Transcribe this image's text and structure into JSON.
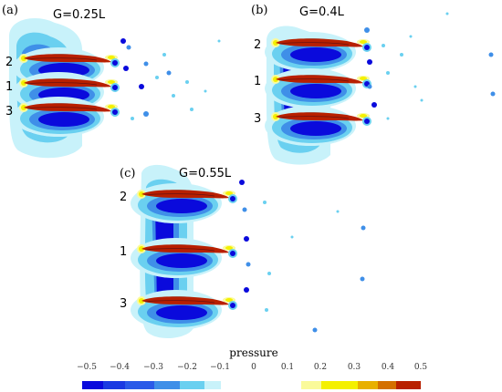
{
  "panels": [
    {
      "letter": "(a)",
      "gap": "G=0.25L",
      "labels": [
        "2",
        "1",
        "3"
      ]
    },
    {
      "letter": "(b)",
      "gap": "G=0.4L",
      "labels": [
        "2",
        "1",
        "3"
      ]
    },
    {
      "letter": "(c)",
      "gap": "G=0.55L",
      "labels": [
        "2",
        "1",
        "3"
      ]
    }
  ],
  "colorbar": {
    "title": "pressure",
    "ticks": [
      "−0.5",
      "−0.4",
      "−0.3",
      "−0.2",
      "−0.1",
      "0",
      "0.1",
      "0.2",
      "0.3",
      "0.4",
      "0.5"
    ],
    "colors": {
      "c_neg5": "#0a0adc",
      "c_neg4": "#2a5ae8",
      "c_neg3": "#3f8fe8",
      "c_neg2": "#6ad0f0",
      "c_neg1": "#c8f2fa",
      "c_zero": "#ffffff",
      "c_pos1": "#ffffff",
      "c_pos2": "#fafa9a",
      "c_pos3": "#f4f000",
      "c_pos4": "#e8b000",
      "c_pos5": "#b82000"
    }
  }
}
